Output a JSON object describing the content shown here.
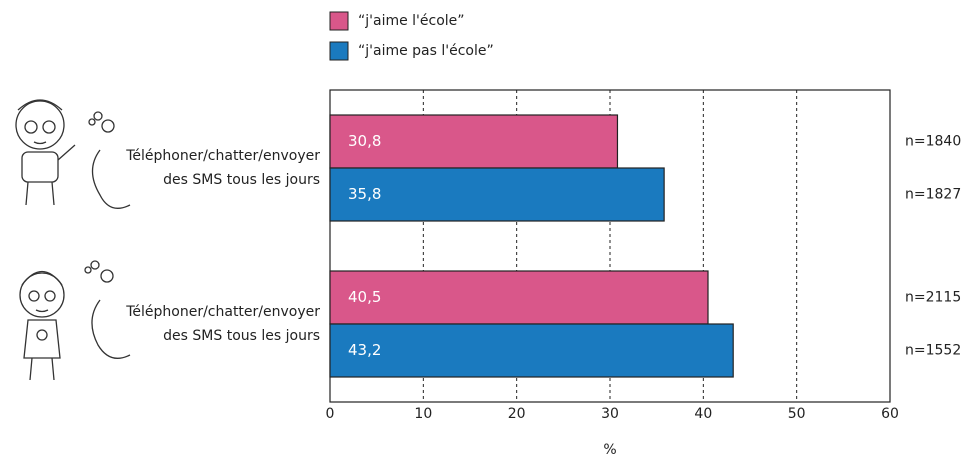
{
  "chart_data": {
    "type": "bar",
    "orientation": "horizontal",
    "categories": [
      [
        "Téléphoner/chatter/envoyer",
        "des SMS tous les jours"
      ],
      [
        "Téléphoner/chatter/envoyer",
        "des SMS tous les jours"
      ]
    ],
    "series": [
      {
        "name": "“j'aime l'école”",
        "color": "#d9578a",
        "values": [
          30.8,
          40.5
        ],
        "value_labels": [
          "30,8",
          "40,5"
        ],
        "n_labels": [
          "n=1840",
          "n=2115"
        ]
      },
      {
        "name": "“j'aime pas l'école”",
        "color": "#1a7abf",
        "values": [
          35.8,
          43.2
        ],
        "value_labels": [
          "35,8",
          "43,2"
        ],
        "n_labels": [
          "n=1827",
          "n=1552"
        ]
      }
    ],
    "x_label": "%",
    "xlim": [
      0,
      60
    ],
    "xticks": [
      0,
      10,
      20,
      30,
      40,
      50,
      60
    ],
    "grid": true
  }
}
